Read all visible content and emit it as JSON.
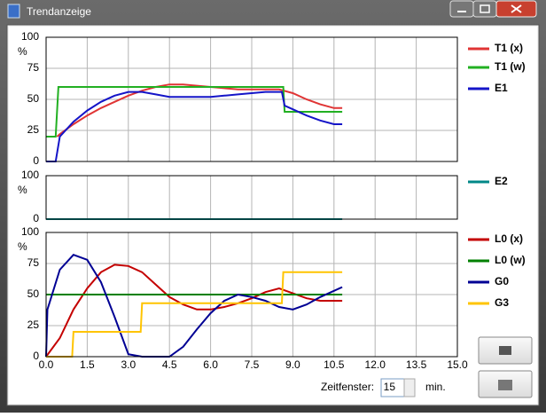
{
  "window": {
    "title": "Trendanzeige"
  },
  "controls": {
    "window_label": "Zeitfenster:",
    "window_value": "15",
    "window_unit": "min."
  },
  "chart_data": [
    {
      "type": "line",
      "ylabel": "%",
      "ylim": [
        0,
        100
      ],
      "yticks": [
        0,
        25,
        50,
        75,
        100
      ],
      "grid": true,
      "series": [
        {
          "name": "T1 (x)",
          "color": "#e03434",
          "x": [
            0.4,
            0.5,
            1,
            1.5,
            2,
            2.5,
            3,
            3.5,
            4,
            4.5,
            5,
            5.5,
            6,
            6.5,
            7,
            7.5,
            8,
            8.5,
            9,
            9.5,
            10,
            10.5,
            10.8
          ],
          "values": [
            20,
            22,
            30,
            37,
            43,
            48,
            53,
            57,
            60,
            62,
            62,
            61,
            60,
            59,
            58,
            58,
            58,
            58,
            55,
            50,
            46,
            43,
            43
          ]
        },
        {
          "name": "T1 (w)",
          "color": "#22b022",
          "x": [
            0,
            0.35,
            0.45,
            8.65,
            8.7,
            10.8
          ],
          "values": [
            20,
            20,
            60,
            60,
            40,
            40
          ]
        },
        {
          "name": "E1",
          "color": "#1414c8",
          "x": [
            0,
            0.35,
            0.5,
            1,
            1.5,
            2,
            2.5,
            3,
            3.5,
            4,
            4.5,
            5,
            5.5,
            6,
            6.5,
            7,
            7.5,
            8,
            8.5,
            8.6,
            8.7,
            9,
            9.5,
            10,
            10.5,
            10.8
          ],
          "values": [
            0,
            0,
            20,
            32,
            41,
            48,
            53,
            56,
            56,
            54,
            52,
            52,
            52,
            52,
            53,
            54,
            55,
            56,
            56,
            56,
            45,
            42,
            37,
            33,
            30,
            30
          ]
        }
      ]
    },
    {
      "type": "line",
      "ylabel": "%",
      "ylim": [
        0,
        100
      ],
      "yticks": [
        0,
        100
      ],
      "grid": true,
      "series": [
        {
          "name": "E2",
          "color": "#008888",
          "x": [
            0,
            10.8
          ],
          "values": [
            0,
            0
          ]
        }
      ]
    },
    {
      "type": "line",
      "ylabel": "%",
      "ylim": [
        0,
        100
      ],
      "yticks": [
        0,
        25,
        50,
        75,
        100
      ],
      "grid": true,
      "xlim": [
        0,
        15
      ],
      "xticks": [
        {
          "value": 0,
          "label": "0.0"
        },
        {
          "value": 1.5,
          "label": "1.5"
        },
        {
          "value": 3,
          "label": "3.0"
        },
        {
          "value": 4.5,
          "label": "4.5"
        },
        {
          "value": 6,
          "label": "6.0"
        },
        {
          "value": 7.5,
          "label": "7.5"
        },
        {
          "value": 9,
          "label": "9.0"
        },
        {
          "value": 10.5,
          "label": "10.5"
        },
        {
          "value": 12,
          "label": "12.0"
        },
        {
          "value": 13.5,
          "label": "13.5"
        },
        {
          "value": 15,
          "label": "15.0"
        }
      ],
      "series": [
        {
          "name": "L0 (x)",
          "color": "#c40000",
          "x": [
            0,
            0.5,
            1,
            1.5,
            2,
            2.5,
            3,
            3.5,
            4,
            4.5,
            5,
            5.5,
            6,
            6.5,
            7,
            7.5,
            8,
            8.5,
            9,
            9.5,
            10,
            10.5,
            10.8
          ],
          "values": [
            0,
            15,
            38,
            55,
            68,
            74,
            73,
            68,
            58,
            48,
            42,
            38,
            38,
            40,
            43,
            47,
            52,
            55,
            51,
            47,
            45,
            45,
            45
          ]
        },
        {
          "name": "L0 (w)",
          "color": "#008000",
          "x": [
            0,
            10.8
          ],
          "values": [
            50,
            50
          ]
        },
        {
          "name": "G0",
          "color": "#000094",
          "x": [
            0,
            0.05,
            0.5,
            1,
            1.5,
            2,
            2.5,
            3,
            3.5,
            4,
            4.5,
            5,
            5.5,
            6,
            6.5,
            7,
            7.5,
            8,
            8.5,
            9,
            9.5,
            10,
            10.5,
            10.8
          ],
          "values": [
            0,
            38,
            70,
            82,
            78,
            60,
            32,
            2,
            0,
            0,
            0,
            8,
            22,
            35,
            45,
            50,
            48,
            45,
            40,
            38,
            42,
            48,
            53,
            56
          ]
        },
        {
          "name": "G3",
          "color": "#ffc400",
          "x": [
            0,
            0.95,
            1,
            3.45,
            3.5,
            8.6,
            8.65,
            10.8
          ],
          "values": [
            0,
            0,
            20,
            20,
            43,
            43,
            68,
            68
          ]
        }
      ]
    }
  ]
}
